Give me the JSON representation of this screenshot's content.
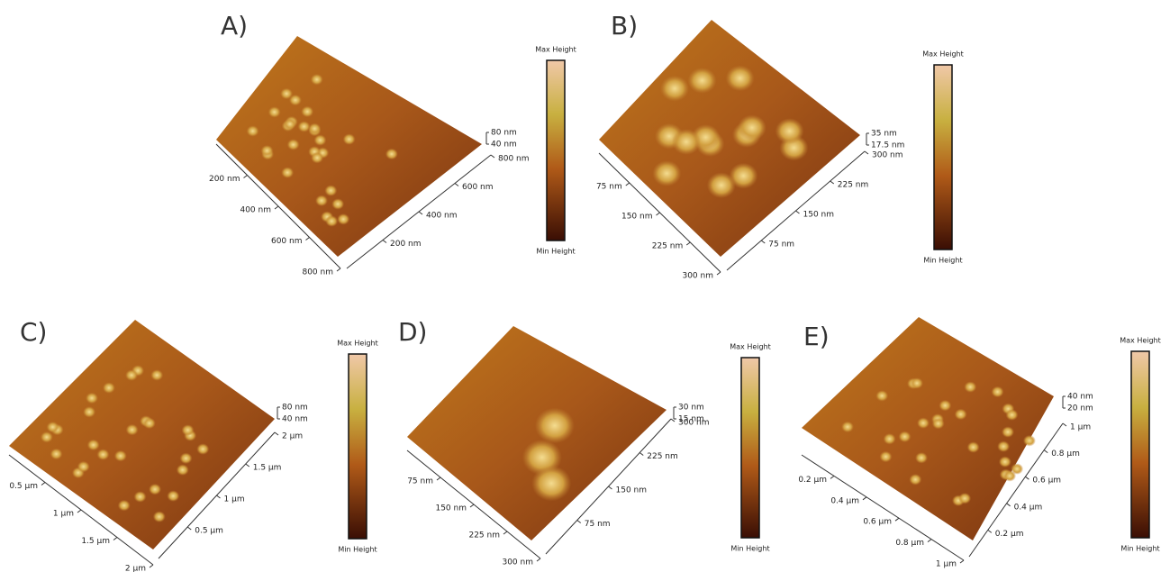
{
  "panels": [
    {
      "label": "A)",
      "z_labels": [
        "80 nm",
        "40 nm"
      ],
      "left_axis": [
        "200 nm",
        "400 nm",
        "600 nm",
        "800 nm"
      ],
      "right_axis": [
        "200 nm",
        "400 nm",
        "600 nm",
        "800 nm"
      ],
      "colorbar": {
        "max": "Max Height",
        "min": "Min Height"
      }
    },
    {
      "label": "B)",
      "z_labels": [
        "35 nm",
        "17.5 nm"
      ],
      "left_axis": [
        "75 nm",
        "150 nm",
        "225 nm",
        "300 nm"
      ],
      "right_axis": [
        "75 nm",
        "150 nm",
        "225 nm",
        "300 nm"
      ],
      "colorbar": {
        "max": "Max Height",
        "min": "Min Height"
      }
    },
    {
      "label": "C)",
      "z_labels": [
        "80 nm",
        "40 nm"
      ],
      "left_axis": [
        "0.5 µm",
        "1 µm",
        "1.5 µm",
        "2 µm"
      ],
      "right_axis": [
        "0.5 µm",
        "1 µm",
        "1.5 µm",
        "2 µm"
      ],
      "colorbar": {
        "max": "Max Height",
        "min": "Min Height"
      }
    },
    {
      "label": "D)",
      "z_labels": [
        "30 nm",
        "15 nm"
      ],
      "left_axis": [
        "75 nm",
        "150 nm",
        "225 nm",
        "300 nm"
      ],
      "right_axis": [
        "75 nm",
        "150 nm",
        "225 nm",
        "300 nm"
      ],
      "colorbar": {
        "max": "Max Height",
        "min": "Min Height"
      }
    },
    {
      "label": "E)",
      "z_labels": [
        "40 nm",
        "20 nm"
      ],
      "left_axis": [
        "0.2 µm",
        "0.4 µm",
        "0.6 µm",
        "0.8 µm",
        "1 µm"
      ],
      "right_axis": [
        "0.2 µm",
        "0.4 µm",
        "0.6 µm",
        "0.8 µm",
        "1 µm"
      ],
      "colorbar": {
        "max": "Max Height",
        "min": "Min Height"
      }
    }
  ]
}
